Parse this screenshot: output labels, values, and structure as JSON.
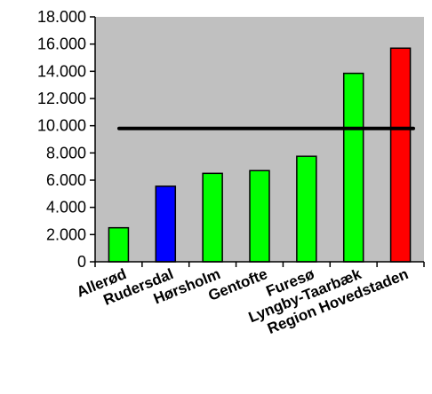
{
  "chart_data": {
    "type": "bar",
    "title": "",
    "xlabel": "",
    "ylabel": "",
    "ylim": [
      0,
      18000
    ],
    "yticks": [
      0,
      2000,
      4000,
      6000,
      8000,
      10000,
      12000,
      14000,
      16000,
      18000
    ],
    "ytick_labels": [
      "0",
      "2.000",
      "4.000",
      "6.000",
      "8.000",
      "10.000",
      "12.000",
      "14.000",
      "16.000",
      "18.000"
    ],
    "categories": [
      "Allerød",
      "Rudersdal",
      "Hørsholm",
      "Gentofte",
      "Furesø",
      "Lyngby-Taarbæk",
      "Region Hovedstaden"
    ],
    "values": [
      2500,
      5550,
      6500,
      6700,
      7750,
      13850,
      15700
    ],
    "bar_colors": [
      "#00ff00",
      "#0000ff",
      "#00ff00",
      "#00ff00",
      "#00ff00",
      "#00ff00",
      "#ff0000"
    ],
    "reference_line": {
      "value": 9800,
      "color": "#000000"
    },
    "plot_background": "#c0c0c0",
    "grid": false,
    "legend": "none"
  }
}
